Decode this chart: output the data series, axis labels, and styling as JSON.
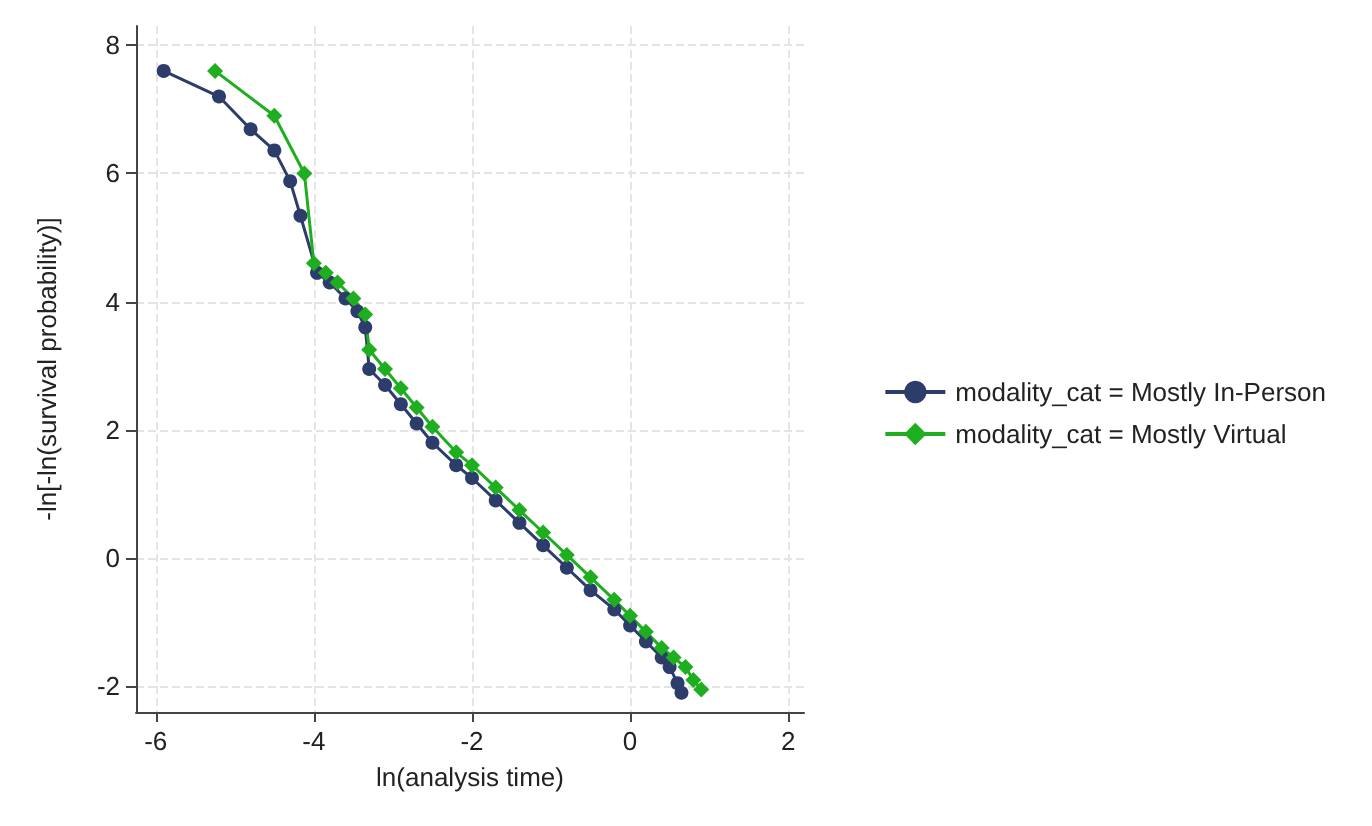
{
  "chart_data": {
    "type": "line",
    "xlabel": "ln(analysis time)",
    "ylabel": "-ln[-ln(survival probability)]",
    "xlim": [
      -6.25,
      2.2
    ],
    "xticks": [
      -6,
      -4,
      -2,
      0,
      2
    ],
    "ylim": [
      -2.4,
      8.3
    ],
    "yticks": [
      -2,
      0,
      2,
      4,
      6,
      8
    ],
    "grid": true,
    "legend": "right",
    "line_style": "solid",
    "series": [
      {
        "name": "modality_cat = Mostly In-Person",
        "color": "#2d3d6b",
        "marker": "circle",
        "x": [
          -5.9,
          -5.2,
          -4.8,
          -4.5,
          -4.3,
          -4.17,
          -3.96,
          -3.8,
          -3.6,
          -3.45,
          -3.35,
          -3.3,
          -3.1,
          -2.9,
          -2.7,
          -2.5,
          -2.2,
          -2.0,
          -1.7,
          -1.4,
          -1.1,
          -0.8,
          -0.5,
          -0.2,
          0,
          0.2,
          0.4,
          0.5,
          0.6,
          0.65
        ],
        "values": [
          7.6,
          7.2,
          6.69,
          6.36,
          5.88,
          5.34,
          4.45,
          4.3,
          4.05,
          3.85,
          3.6,
          2.95,
          2.7,
          2.4,
          2.1,
          1.8,
          1.45,
          1.25,
          0.9,
          0.55,
          0.2,
          -0.15,
          -0.5,
          -0.8,
          -1.05,
          -1.3,
          -1.55,
          -1.7,
          -1.95,
          -2.1
        ]
      },
      {
        "name": "modality_cat = Mostly Virtual",
        "color": "#1fae1f",
        "marker": "diamond",
        "x": [
          -5.25,
          -4.5,
          -4.12,
          -4.0,
          -3.85,
          -3.7,
          -3.5,
          -3.35,
          -3.3,
          -3.1,
          -2.9,
          -2.7,
          -2.5,
          -2.2,
          -2.0,
          -1.7,
          -1.4,
          -1.1,
          -0.8,
          -0.5,
          -0.2,
          0,
          0.2,
          0.4,
          0.55,
          0.7,
          0.8,
          0.9
        ],
        "values": [
          7.6,
          6.9,
          6.0,
          4.6,
          4.45,
          4.3,
          4.05,
          3.8,
          3.25,
          2.95,
          2.65,
          2.35,
          2.05,
          1.65,
          1.45,
          1.1,
          0.75,
          0.4,
          0.05,
          -0.3,
          -0.65,
          -0.9,
          -1.15,
          -1.4,
          -1.55,
          -1.7,
          -1.9,
          -2.05
        ]
      }
    ]
  }
}
